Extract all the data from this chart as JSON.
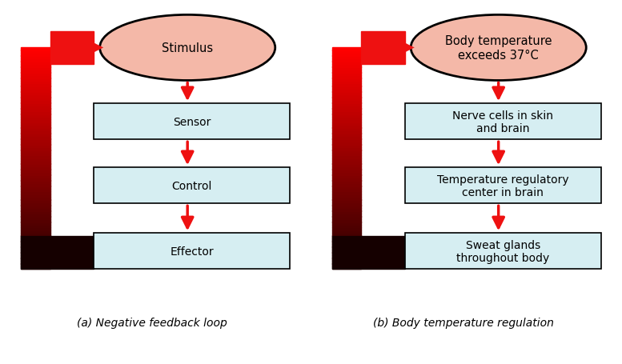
{
  "fig_width": 7.77,
  "fig_height": 4.56,
  "dpi": 100,
  "bg_color": "#ffffff",
  "panel_a": {
    "title": "(a) Negative feedback loop",
    "ellipse_label": "Stimulus",
    "ellipse_color": "#f4b8a8",
    "ellipse_edge_color": "#000000",
    "box_color": "#d6eef2",
    "box_edge_color": "#000000",
    "boxes": [
      "Sensor",
      "Control",
      "Effector"
    ],
    "arrow_color": "#ee1111"
  },
  "panel_b": {
    "title": "(b) Body temperature regulation",
    "ellipse_label": "Body temperature\nexceeds 37°C",
    "ellipse_color": "#f4b8a8",
    "ellipse_edge_color": "#000000",
    "box_color": "#d6eef2",
    "box_edge_color": "#000000",
    "boxes": [
      "Nerve cells in skin\nand brain",
      "Temperature regulatory\ncenter in brain",
      "Sweat glands\nthroughout body"
    ],
    "arrow_color": "#ee1111"
  }
}
